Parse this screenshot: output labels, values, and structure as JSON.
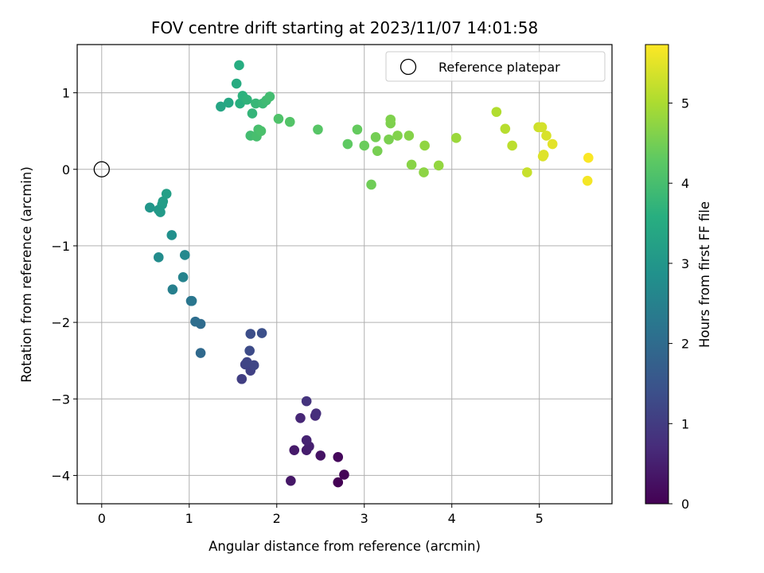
{
  "chart_data": {
    "type": "scatter",
    "title": "FOV centre drift starting at 2023/11/07 14:01:58",
    "xlabel": "Angular distance from reference (arcmin)",
    "ylabel": "Rotation from reference (arcmin)",
    "xlim": [
      -0.28,
      5.83
    ],
    "ylim": [
      -4.37,
      1.63
    ],
    "xticks": [
      0,
      1,
      2,
      3,
      4,
      5
    ],
    "yticks": [
      -4,
      -3,
      -2,
      -1,
      0,
      1
    ],
    "grid": true,
    "legend": {
      "placement": "upper-right",
      "entries": [
        "Reference platepar"
      ]
    },
    "reference_point": {
      "x": 0,
      "y": 0
    },
    "colorbar": {
      "label": "Hours from first FF file",
      "colormap": "viridis",
      "range": [
        0,
        5.73
      ],
      "ticks": [
        0,
        1,
        2,
        3,
        4,
        5
      ]
    },
    "points": [
      {
        "x": 2.7,
        "y": -4.09,
        "c": 0.0
      },
      {
        "x": 2.77,
        "y": -3.99,
        "c": 0.05
      },
      {
        "x": 2.7,
        "y": -3.76,
        "c": 0.12
      },
      {
        "x": 2.5,
        "y": -3.74,
        "c": 0.3
      },
      {
        "x": 2.16,
        "y": -4.07,
        "c": 0.35
      },
      {
        "x": 2.2,
        "y": -3.67,
        "c": 0.4
      },
      {
        "x": 2.34,
        "y": -3.67,
        "c": 0.45
      },
      {
        "x": 2.37,
        "y": -3.62,
        "c": 0.5
      },
      {
        "x": 2.34,
        "y": -3.54,
        "c": 0.55
      },
      {
        "x": 2.27,
        "y": -3.25,
        "c": 0.62
      },
      {
        "x": 2.44,
        "y": -3.22,
        "c": 0.7
      },
      {
        "x": 2.45,
        "y": -3.19,
        "c": 0.75
      },
      {
        "x": 2.34,
        "y": -3.03,
        "c": 0.85
      },
      {
        "x": 1.6,
        "y": -2.74,
        "c": 1.05
      },
      {
        "x": 1.7,
        "y": -2.63,
        "c": 1.1
      },
      {
        "x": 1.64,
        "y": -2.55,
        "c": 1.15
      },
      {
        "x": 1.66,
        "y": -2.52,
        "c": 1.18
      },
      {
        "x": 1.74,
        "y": -2.56,
        "c": 1.2
      },
      {
        "x": 1.69,
        "y": -2.37,
        "c": 1.3
      },
      {
        "x": 1.7,
        "y": -2.15,
        "c": 1.35
      },
      {
        "x": 1.83,
        "y": -2.14,
        "c": 1.4
      },
      {
        "x": 1.13,
        "y": -2.4,
        "c": 1.95
      },
      {
        "x": 1.13,
        "y": -2.02,
        "c": 2.0
      },
      {
        "x": 1.07,
        "y": -1.99,
        "c": 2.05
      },
      {
        "x": 1.02,
        "y": -1.72,
        "c": 2.2
      },
      {
        "x": 1.03,
        "y": -1.72,
        "c": 2.25
      },
      {
        "x": 0.81,
        "y": -1.57,
        "c": 2.45
      },
      {
        "x": 0.93,
        "y": -1.41,
        "c": 2.55
      },
      {
        "x": 0.95,
        "y": -1.12,
        "c": 2.65
      },
      {
        "x": 0.65,
        "y": -1.15,
        "c": 2.75
      },
      {
        "x": 0.8,
        "y": -0.86,
        "c": 2.85
      },
      {
        "x": 0.55,
        "y": -0.5,
        "c": 3.0
      },
      {
        "x": 0.65,
        "y": -0.53,
        "c": 3.05
      },
      {
        "x": 0.67,
        "y": -0.56,
        "c": 3.08
      },
      {
        "x": 0.69,
        "y": -0.46,
        "c": 3.12
      },
      {
        "x": 0.7,
        "y": -0.42,
        "c": 3.15
      },
      {
        "x": 0.74,
        "y": -0.32,
        "c": 3.2
      },
      {
        "x": 1.36,
        "y": 0.82,
        "c": 3.35
      },
      {
        "x": 1.45,
        "y": 0.87,
        "c": 3.4
      },
      {
        "x": 1.54,
        "y": 1.12,
        "c": 3.5
      },
      {
        "x": 1.57,
        "y": 1.36,
        "c": 3.55
      },
      {
        "x": 1.58,
        "y": 0.86,
        "c": 3.6
      },
      {
        "x": 1.61,
        "y": 0.96,
        "c": 3.65
      },
      {
        "x": 1.66,
        "y": 0.91,
        "c": 3.7
      },
      {
        "x": 1.72,
        "y": 0.73,
        "c": 3.75
      },
      {
        "x": 1.76,
        "y": 0.86,
        "c": 3.8
      },
      {
        "x": 1.84,
        "y": 0.86,
        "c": 3.85
      },
      {
        "x": 1.88,
        "y": 0.9,
        "c": 3.9
      },
      {
        "x": 1.92,
        "y": 0.95,
        "c": 3.95
      },
      {
        "x": 1.7,
        "y": 0.44,
        "c": 3.95
      },
      {
        "x": 1.77,
        "y": 0.43,
        "c": 4.0
      },
      {
        "x": 1.79,
        "y": 0.52,
        "c": 4.0
      },
      {
        "x": 1.82,
        "y": 0.5,
        "c": 4.05
      },
      {
        "x": 2.02,
        "y": 0.66,
        "c": 4.1
      },
      {
        "x": 2.15,
        "y": 0.62,
        "c": 4.15
      },
      {
        "x": 2.47,
        "y": 0.52,
        "c": 4.2
      },
      {
        "x": 2.81,
        "y": 0.33,
        "c": 4.3
      },
      {
        "x": 2.92,
        "y": 0.52,
        "c": 4.35
      },
      {
        "x": 3.0,
        "y": 0.31,
        "c": 4.4
      },
      {
        "x": 3.08,
        "y": -0.2,
        "c": 4.45
      },
      {
        "x": 3.13,
        "y": 0.42,
        "c": 4.5
      },
      {
        "x": 3.15,
        "y": 0.24,
        "c": 4.52
      },
      {
        "x": 3.28,
        "y": 0.39,
        "c": 4.55
      },
      {
        "x": 3.3,
        "y": 0.6,
        "c": 4.58
      },
      {
        "x": 3.3,
        "y": 0.65,
        "c": 4.6
      },
      {
        "x": 3.38,
        "y": 0.44,
        "c": 4.62
      },
      {
        "x": 3.51,
        "y": 0.44,
        "c": 4.65
      },
      {
        "x": 3.54,
        "y": 0.06,
        "c": 4.68
      },
      {
        "x": 3.68,
        "y": -0.04,
        "c": 4.72
      },
      {
        "x": 3.69,
        "y": 0.31,
        "c": 4.75
      },
      {
        "x": 3.85,
        "y": 0.05,
        "c": 4.78
      },
      {
        "x": 4.05,
        "y": 0.41,
        "c": 4.85
      },
      {
        "x": 4.51,
        "y": 0.75,
        "c": 5.05
      },
      {
        "x": 4.61,
        "y": 0.53,
        "c": 5.1
      },
      {
        "x": 4.69,
        "y": 0.31,
        "c": 5.15
      },
      {
        "x": 4.86,
        "y": -0.04,
        "c": 5.25
      },
      {
        "x": 4.99,
        "y": 0.55,
        "c": 5.3
      },
      {
        "x": 5.03,
        "y": 0.55,
        "c": 5.35
      },
      {
        "x": 5.08,
        "y": 0.44,
        "c": 5.4
      },
      {
        "x": 5.04,
        "y": 0.17,
        "c": 5.42
      },
      {
        "x": 5.05,
        "y": 0.19,
        "c": 5.45
      },
      {
        "x": 5.15,
        "y": 0.33,
        "c": 5.5
      },
      {
        "x": 5.55,
        "y": -0.15,
        "c": 5.65
      },
      {
        "x": 5.56,
        "y": 0.15,
        "c": 5.7
      }
    ]
  }
}
